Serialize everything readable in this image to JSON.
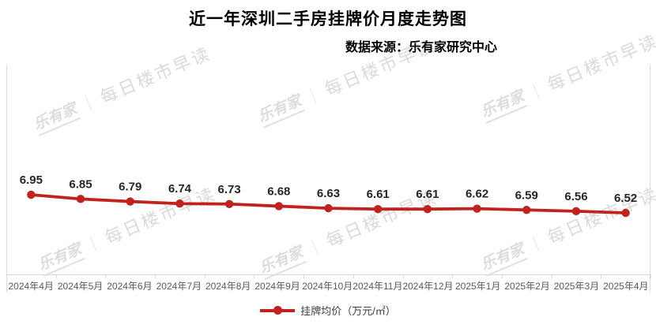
{
  "title": "近一年深圳二手房挂牌价月度走势图",
  "subtitle": "数据来源：乐有家研究中心",
  "watermark": {
    "logo": "乐有家",
    "separator": "｜",
    "text": "每日楼市早读"
  },
  "legend": {
    "label": "挂牌均价（万元/㎡）"
  },
  "colors": {
    "line_red": "#c2211d",
    "value_label": "#262626",
    "axis_gray": "#d9d9d9",
    "x_label_gray": "#595959",
    "watermark_gray": "#dcdcdc"
  },
  "chart_data": {
    "type": "line",
    "title": "近一年深圳二手房挂牌价月度走势图",
    "subtitle": "数据来源：乐有家研究中心",
    "categories": [
      "2024年4月",
      "2024年5月",
      "2024年6月",
      "2024年7月",
      "2024年8月",
      "2024年9月",
      "2024年10月",
      "2024年11月",
      "2024年12月",
      "2025年1月",
      "2025年2月",
      "2025年3月",
      "2025年4月"
    ],
    "series": [
      {
        "name": "挂牌均价（万元/㎡）",
        "values": [
          6.95,
          6.85,
          6.79,
          6.74,
          6.73,
          6.68,
          6.63,
          6.61,
          6.61,
          6.62,
          6.59,
          6.56,
          6.52
        ]
      }
    ],
    "xlabel": "",
    "ylabel": "挂牌均价（万元/㎡）",
    "y_axis_visible": false,
    "grid": false,
    "data_labels": true,
    "marker": "circle",
    "legend_position": "bottom"
  }
}
